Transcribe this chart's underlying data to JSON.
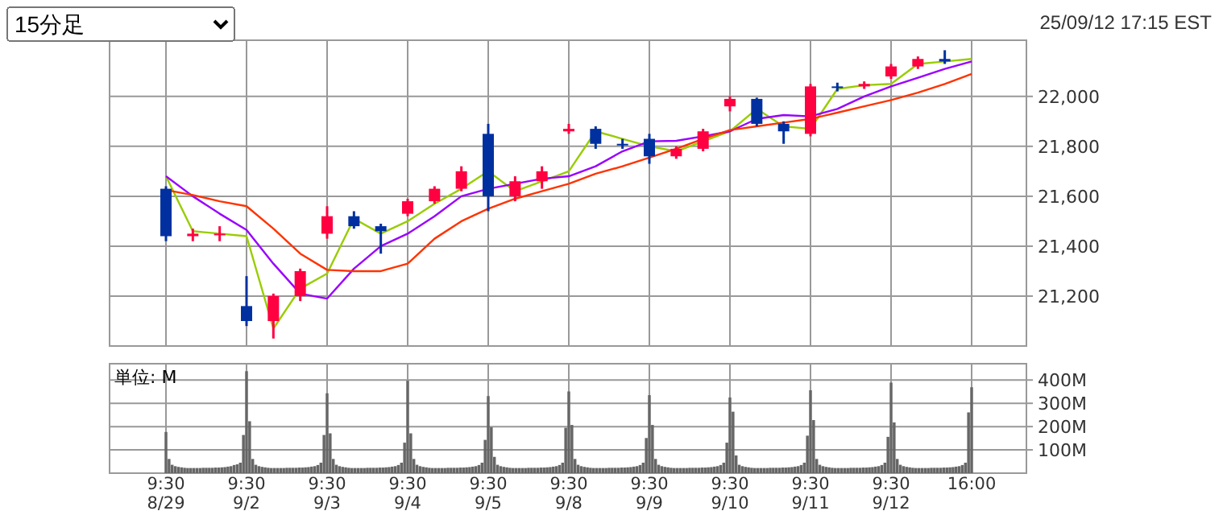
{
  "chart_data": [
    {
      "type": "candlestick",
      "annotations": [
        "15分足",
        "25/09/12 17:15 EST"
      ],
      "categories": [
        null,
        null,
        null,
        null,
        null,
        null,
        null,
        null,
        null,
        null,
        null,
        null,
        null,
        null,
        null,
        null,
        null,
        null,
        null,
        null,
        null,
        null,
        null,
        null,
        null,
        null,
        null,
        null,
        null,
        null,
        null
      ],
      "ohlc": [
        [
          21630,
          21640,
          21420,
          21440
        ],
        [
          21440,
          21470,
          21420,
          21450
        ],
        [
          21450,
          21480,
          21420,
          21450
        ],
        [
          21160,
          21280,
          21080,
          21100
        ],
        [
          21100,
          21210,
          21030,
          21200
        ],
        [
          21200,
          21310,
          21180,
          21300
        ],
        [
          21450,
          21560,
          21430,
          21520
        ],
        [
          21520,
          21540,
          21470,
          21480
        ],
        [
          21480,
          21490,
          21370,
          21460
        ],
        [
          21530,
          21590,
          21520,
          21580
        ],
        [
          21580,
          21640,
          21570,
          21630
        ],
        [
          21630,
          21720,
          21620,
          21700
        ],
        [
          21850,
          21890,
          21540,
          21600
        ],
        [
          21600,
          21680,
          21580,
          21660
        ],
        [
          21660,
          21720,
          21630,
          21700
        ],
        [
          21860,
          21890,
          21850,
          21870
        ],
        [
          21870,
          21880,
          21790,
          21810
        ],
        [
          21810,
          21830,
          21790,
          21810
        ],
        [
          21830,
          21850,
          21730,
          21760
        ],
        [
          21760,
          21800,
          21750,
          21790
        ],
        [
          21790,
          21870,
          21780,
          21860
        ],
        [
          21960,
          22000,
          21940,
          21990
        ],
        [
          21990,
          21995,
          21880,
          21890
        ],
        [
          21890,
          21900,
          21810,
          21860
        ],
        [
          21850,
          22050,
          21840,
          22040
        ],
        [
          22040,
          22055,
          22020,
          22040
        ],
        [
          22040,
          22060,
          22030,
          22050
        ],
        [
          22080,
          22130,
          22070,
          22120
        ],
        [
          22120,
          22160,
          22110,
          22150
        ],
        [
          22150,
          22185,
          22130,
          22140
        ],
        null
      ],
      "colors": [
        "#0030a0",
        "#ff0040",
        "#ff0040",
        "#0030a0",
        "#ff0040",
        "#ff0040",
        "#ff0040",
        "#0030a0",
        "#0030a0",
        "#ff0040",
        "#ff0040",
        "#ff0040",
        "#0030a0",
        "#ff0040",
        "#ff0040",
        "#ff0040",
        "#0030a0",
        "#0030a0",
        "#0030a0",
        "#ff0040",
        "#ff0040",
        "#ff0040",
        "#0030a0",
        "#0030a0",
        "#ff0040",
        "#0030a0",
        "#ff0040",
        "#ff0040",
        "#ff0040",
        "#0030a0",
        null
      ],
      "series": [
        {
          "type": "line",
          "color": "#99cc00",
          "values": [
            21680,
            21460,
            21450,
            21440,
            21070,
            21230,
            21290,
            21510,
            21450,
            21500,
            21570,
            21630,
            21700,
            21620,
            21660,
            21700,
            21860,
            21830,
            21800,
            21780,
            21820,
            21860,
            21950,
            21880,
            21870,
            22030,
            22045,
            22050,
            22130,
            22140,
            22150
          ]
        },
        {
          "type": "line",
          "color": "#9900ff",
          "values": [
            21680,
            21600,
            21530,
            21465,
            21330,
            21210,
            21190,
            21310,
            21400,
            21450,
            21520,
            21600,
            21630,
            21650,
            21670,
            21680,
            21720,
            21780,
            21820,
            21822,
            21840,
            21860,
            21910,
            21925,
            21920,
            21950,
            22000,
            22040,
            22075,
            22110,
            22140
          ]
        },
        {
          "type": "line",
          "color": "#ff3300",
          "values": [
            21625,
            21605,
            21580,
            21560,
            21470,
            21370,
            21305,
            21300,
            21300,
            21330,
            21430,
            21500,
            21550,
            21590,
            21620,
            21650,
            21690,
            21720,
            21755,
            21790,
            21830,
            21865,
            21880,
            21895,
            21910,
            21935,
            21960,
            21985,
            22015,
            22050,
            22090
          ]
        }
      ],
      "ylim": [
        21000,
        22225
      ],
      "yticks": [
        {
          "value": 21200,
          "label": "21,200"
        },
        {
          "value": 21400,
          "label": "21,400"
        },
        {
          "value": 21600,
          "label": "21,600"
        },
        {
          "value": 21800,
          "label": "21,800"
        },
        {
          "value": 22000,
          "label": "22,000"
        }
      ],
      "grid": true,
      "tick_labels": "y"
    },
    {
      "type": "bar",
      "annotations": [
        "単位: M"
      ],
      "color": "#666666",
      "categories": [
        "9:30\n8/29",
        null,
        null,
        null,
        null,
        null,
        null,
        null,
        null,
        null,
        null,
        null,
        null,
        null,
        null,
        null,
        null,
        null,
        null,
        null,
        null,
        null,
        null,
        null,
        null,
        null,
        "9:30\n9/2",
        null,
        null,
        null,
        null,
        null,
        null,
        null,
        null,
        null,
        null,
        null,
        null,
        null,
        null,
        null,
        null,
        null,
        null,
        null,
        null,
        null,
        null,
        null,
        null,
        null,
        "9:30\n9/3",
        null,
        null,
        null,
        null,
        null,
        null,
        null,
        null,
        null,
        null,
        null,
        null,
        null,
        null,
        null,
        null,
        null,
        null,
        null,
        null,
        null,
        null,
        null,
        null,
        null,
        "9:30\n9/4",
        null,
        null,
        null,
        null,
        null,
        null,
        null,
        null,
        null,
        null,
        null,
        null,
        null,
        null,
        null,
        null,
        null,
        null,
        null,
        null,
        null,
        null,
        null,
        null,
        null,
        "9:30\n9/5",
        null,
        null,
        null,
        null,
        null,
        null,
        null,
        null,
        null,
        null,
        null,
        null,
        null,
        null,
        null,
        null,
        null,
        null,
        null,
        null,
        null,
        null,
        null,
        null,
        null,
        "9:30\n9/8",
        null,
        null,
        null,
        null,
        null,
        null,
        null,
        null,
        null,
        null,
        null,
        null,
        null,
        null,
        null,
        null,
        null,
        null,
        null,
        null,
        null,
        null,
        null,
        null,
        null,
        "9:30\n9/9",
        null,
        null,
        null,
        null,
        null,
        null,
        null,
        null,
        null,
        null,
        null,
        null,
        null,
        null,
        null,
        null,
        null,
        null,
        null,
        null,
        null,
        null,
        null,
        null,
        null,
        "9:30\n9/10",
        null,
        null,
        null,
        null,
        null,
        null,
        null,
        null,
        null,
        null,
        null,
        null,
        null,
        null,
        null,
        null,
        null,
        null,
        null,
        null,
        null,
        null,
        null,
        null,
        null,
        "9:30\n9/11",
        null,
        null,
        null,
        null,
        null,
        null,
        null,
        null,
        null,
        null,
        null,
        null,
        null,
        null,
        null,
        null,
        null,
        null,
        null,
        null,
        null,
        null,
        null,
        null,
        null,
        "9:30\n9/12",
        null,
        null,
        null,
        null,
        null,
        null,
        null,
        null,
        null,
        null,
        null,
        null,
        null,
        null,
        null,
        null,
        null,
        null,
        null,
        null,
        null,
        null,
        null,
        null,
        null,
        "16:00"
      ],
      "values": [
        177,
        61,
        36,
        30,
        27,
        25,
        23,
        22,
        22,
        22,
        22,
        22,
        23,
        23,
        23,
        23,
        24,
        24,
        25,
        26,
        28,
        30,
        35,
        38,
        45,
        164,
        438,
        223,
        61,
        36,
        30,
        27,
        25,
        23,
        22,
        22,
        22,
        22,
        22,
        23,
        23,
        23,
        23,
        24,
        24,
        25,
        26,
        28,
        30,
        35,
        45,
        164,
        343,
        171,
        61,
        36,
        30,
        27,
        25,
        23,
        22,
        22,
        22,
        22,
        22,
        23,
        23,
        23,
        23,
        24,
        24,
        25,
        26,
        28,
        30,
        35,
        45,
        131,
        397,
        171,
        61,
        36,
        30,
        27,
        25,
        23,
        22,
        22,
        22,
        22,
        22,
        23,
        23,
        23,
        23,
        24,
        24,
        25,
        26,
        28,
        30,
        35,
        45,
        143,
        331,
        197,
        70,
        36,
        30,
        27,
        25,
        23,
        22,
        22,
        22,
        22,
        22,
        23,
        23,
        23,
        23,
        24,
        24,
        25,
        26,
        28,
        30,
        35,
        45,
        195,
        351,
        207,
        61,
        36,
        30,
        27,
        25,
        23,
        22,
        22,
        22,
        22,
        22,
        23,
        23,
        23,
        23,
        24,
        24,
        25,
        26,
        28,
        30,
        35,
        45,
        151,
        335,
        207,
        61,
        36,
        30,
        27,
        25,
        23,
        22,
        22,
        22,
        22,
        22,
        23,
        23,
        23,
        23,
        24,
        24,
        25,
        26,
        28,
        30,
        35,
        45,
        131,
        325,
        264,
        76,
        36,
        30,
        27,
        25,
        23,
        22,
        22,
        22,
        22,
        22,
        23,
        23,
        23,
        23,
        24,
        24,
        25,
        26,
        28,
        30,
        35,
        45,
        161,
        356,
        228,
        61,
        36,
        30,
        27,
        25,
        23,
        22,
        22,
        22,
        22,
        22,
        23,
        23,
        23,
        23,
        24,
        24,
        25,
        26,
        28,
        30,
        35,
        45,
        156,
        389,
        218,
        61,
        36,
        30,
        27,
        25,
        23,
        22,
        22,
        22,
        22,
        22,
        23,
        23,
        23,
        23,
        24,
        24,
        25,
        26,
        28,
        30,
        35,
        45,
        261,
        369
      ],
      "ylim": [
        0,
        470
      ],
      "yticks": [
        {
          "value": 100,
          "label": "100M"
        },
        {
          "value": 200,
          "label": "200M"
        },
        {
          "value": 300,
          "label": "300M"
        },
        {
          "value": 400,
          "label": "400M"
        }
      ],
      "grid": true
    }
  ]
}
